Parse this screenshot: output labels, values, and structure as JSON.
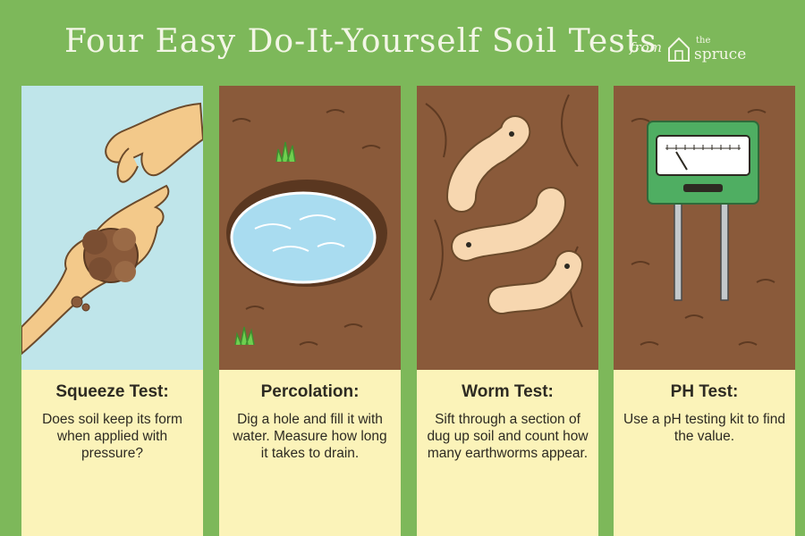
{
  "header": {
    "title": "Four Easy Do-It-Yourself Soil Tests",
    "from": "from",
    "logo": {
      "the": "the",
      "name": "spruce",
      "icon": "house-icon"
    }
  },
  "panels": [
    {
      "title": "Squeeze Test:",
      "text": "Does soil keep its form when applied with pressure?",
      "illustration": "hand-with-soil"
    },
    {
      "title": "Percolation:",
      "text": "Dig a hole and fill it with water. Measure how long it takes to drain.",
      "illustration": "water-hole"
    },
    {
      "title": "Worm Test:",
      "text": "Sift through a section of dug up soil and count how many earthworms appear.",
      "illustration": "earthworms"
    },
    {
      "title": "PH Test:",
      "text": "Use a pH testing kit to find the value.",
      "illustration": "ph-meter"
    }
  ],
  "colors": {
    "background": "#7db85a",
    "caption": "#fbf3b9",
    "soil": "#8a5a3a",
    "sky": "#bfe5ea",
    "water": "#a9dcf0"
  }
}
